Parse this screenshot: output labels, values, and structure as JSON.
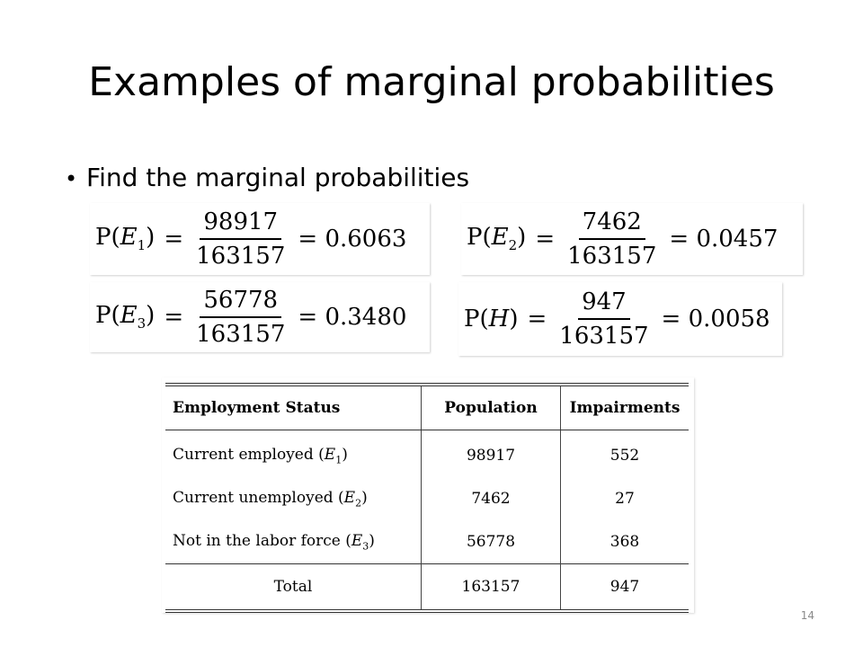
{
  "title": "Examples of marginal probabilities",
  "bullet": "Find the marginal probabilities",
  "formulas": [
    {
      "lhs_prefix": "P(",
      "var": "E",
      "sub": "1",
      "lhs_suffix": ")",
      "eq": "=",
      "numerator": "98917",
      "denominator": "163157",
      "result": "= 0.6063"
    },
    {
      "lhs_prefix": "P(",
      "var": "E",
      "sub": "2",
      "lhs_suffix": ")",
      "eq": "=",
      "numerator": "7462",
      "denominator": "163157",
      "result": "= 0.0457"
    },
    {
      "lhs_prefix": "P(",
      "var": "E",
      "sub": "3",
      "lhs_suffix": ")",
      "eq": "=",
      "numerator": "56778",
      "denominator": "163157",
      "result": "= 0.3480"
    },
    {
      "lhs_prefix": "P(",
      "var": "H",
      "sub": "",
      "lhs_suffix": ")",
      "eq": "=",
      "numerator": "947",
      "denominator": "163157",
      "result": "= 0.0058"
    }
  ],
  "table": {
    "headers": [
      "Employment Status",
      "Population",
      "Impairments"
    ],
    "rows": [
      {
        "label": "Current employed (",
        "var": "E",
        "sub": "1",
        "close": ")",
        "population": "98917",
        "impairments": "552"
      },
      {
        "label": "Current unemployed (",
        "var": "E",
        "sub": "2",
        "close": ")",
        "population": "7462",
        "impairments": "27"
      },
      {
        "label": "Not in the labor force (",
        "var": "E",
        "sub": "3",
        "close": ")",
        "population": "56778",
        "impairments": "368"
      }
    ],
    "total": {
      "label": "Total",
      "population": "163157",
      "impairments": "947"
    }
  },
  "page_number": "14"
}
